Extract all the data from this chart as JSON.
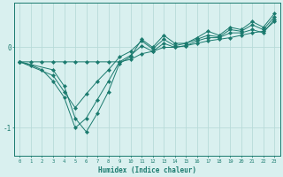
{
  "xlabel": "Humidex (Indice chaleur)",
  "background_color": "#d9f0ef",
  "line_color": "#1a7a6e",
  "grid_color": "#b8dbd9",
  "xlim": [
    -0.5,
    23.5
  ],
  "ylim": [
    -1.35,
    0.55
  ],
  "yticks": [
    -1,
    0
  ],
  "xticks": [
    0,
    1,
    2,
    3,
    4,
    5,
    6,
    7,
    8,
    9,
    10,
    11,
    12,
    13,
    14,
    15,
    16,
    17,
    18,
    19,
    20,
    21,
    22,
    23
  ],
  "series1": [
    [
      0,
      -0.18
    ],
    [
      1,
      -0.18
    ],
    [
      2,
      -0.18
    ],
    [
      3,
      -0.18
    ],
    [
      4,
      -0.18
    ],
    [
      5,
      -0.18
    ],
    [
      6,
      -0.18
    ],
    [
      7,
      -0.18
    ],
    [
      8,
      -0.18
    ],
    [
      9,
      -0.18
    ],
    [
      10,
      -0.15
    ],
    [
      11,
      -0.08
    ],
    [
      12,
      -0.05
    ],
    [
      13,
      0.0
    ],
    [
      14,
      0.0
    ],
    [
      15,
      0.02
    ],
    [
      16,
      0.05
    ],
    [
      17,
      0.08
    ],
    [
      18,
      0.1
    ],
    [
      19,
      0.12
    ],
    [
      20,
      0.15
    ],
    [
      21,
      0.18
    ],
    [
      22,
      0.2
    ],
    [
      23,
      0.32
    ]
  ],
  "series2": [
    [
      0,
      -0.18
    ],
    [
      1,
      -0.22
    ],
    [
      2,
      -0.28
    ],
    [
      3,
      -0.42
    ],
    [
      4,
      -0.62
    ],
    [
      5,
      -1.0
    ],
    [
      6,
      -0.88
    ],
    [
      7,
      -0.65
    ],
    [
      8,
      -0.42
    ],
    [
      9,
      -0.18
    ],
    [
      10,
      -0.1
    ],
    [
      11,
      0.02
    ],
    [
      12,
      -0.05
    ],
    [
      13,
      0.05
    ],
    [
      14,
      0.0
    ],
    [
      15,
      0.02
    ],
    [
      16,
      0.08
    ],
    [
      17,
      0.12
    ],
    [
      18,
      0.12
    ],
    [
      19,
      0.18
    ],
    [
      20,
      0.18
    ],
    [
      21,
      0.22
    ],
    [
      22,
      0.18
    ],
    [
      23,
      0.35
    ]
  ],
  "series3": [
    [
      0,
      -0.18
    ],
    [
      3,
      -0.35
    ],
    [
      4,
      -0.55
    ],
    [
      5,
      -0.75
    ],
    [
      6,
      -0.58
    ],
    [
      7,
      -0.42
    ],
    [
      8,
      -0.28
    ],
    [
      9,
      -0.12
    ],
    [
      10,
      -0.05
    ],
    [
      11,
      0.08
    ],
    [
      12,
      -0.02
    ],
    [
      13,
      0.1
    ],
    [
      14,
      0.02
    ],
    [
      15,
      0.05
    ],
    [
      16,
      0.1
    ],
    [
      17,
      0.15
    ],
    [
      18,
      0.13
    ],
    [
      19,
      0.22
    ],
    [
      20,
      0.2
    ],
    [
      21,
      0.28
    ],
    [
      22,
      0.22
    ],
    [
      23,
      0.38
    ]
  ],
  "series4": [
    [
      0,
      -0.18
    ],
    [
      3,
      -0.28
    ],
    [
      4,
      -0.48
    ],
    [
      5,
      -0.88
    ],
    [
      6,
      -1.05
    ],
    [
      7,
      -0.82
    ],
    [
      8,
      -0.55
    ],
    [
      9,
      -0.2
    ],
    [
      10,
      -0.12
    ],
    [
      11,
      0.1
    ],
    [
      12,
      0.0
    ],
    [
      13,
      0.15
    ],
    [
      14,
      0.05
    ],
    [
      15,
      0.05
    ],
    [
      16,
      0.12
    ],
    [
      17,
      0.2
    ],
    [
      18,
      0.15
    ],
    [
      19,
      0.25
    ],
    [
      20,
      0.22
    ],
    [
      21,
      0.32
    ],
    [
      22,
      0.25
    ],
    [
      23,
      0.42
    ]
  ]
}
